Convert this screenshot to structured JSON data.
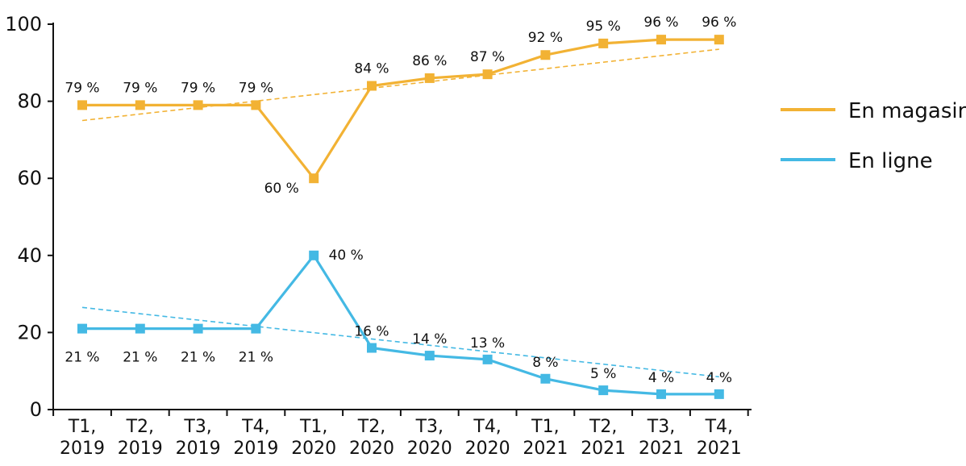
{
  "chart_data": {
    "type": "line",
    "title": "",
    "xlabel": "",
    "ylabel": "",
    "ylim": [
      0,
      100
    ],
    "yticks": [
      0,
      20,
      40,
      60,
      80,
      100
    ],
    "grid": false,
    "legend_position": "right",
    "categories": [
      [
        "T1,",
        "2019"
      ],
      [
        "T2,",
        "2019"
      ],
      [
        "T3,",
        "2019"
      ],
      [
        "T4,",
        "2019"
      ],
      [
        "T1,",
        "2020"
      ],
      [
        "T2,",
        "2020"
      ],
      [
        "T3,",
        "2020"
      ],
      [
        "T4,",
        "2020"
      ],
      [
        "T1,",
        "2021"
      ],
      [
        "T2,",
        "2021"
      ],
      [
        "T3,",
        "2021"
      ],
      [
        "T4,",
        "2021"
      ]
    ],
    "series": [
      {
        "name": "En magasin",
        "color": "#f2b234",
        "values": [
          79,
          79,
          79,
          79,
          60,
          84,
          86,
          87,
          92,
          95,
          96,
          96
        ],
        "labels": [
          "79 %",
          "79 %",
          "79 %",
          "79 %",
          "60 %",
          "84 %",
          "86 %",
          "87 %",
          "92 %",
          "95 %",
          "96 %",
          "96 %"
        ],
        "trend": [
          75,
          93.5
        ]
      },
      {
        "name": "En ligne",
        "color": "#44b9e4",
        "values": [
          21,
          21,
          21,
          21,
          40,
          16,
          14,
          13,
          8,
          5,
          4,
          4
        ],
        "labels": [
          "21 %",
          "21 %",
          "21 %",
          "21 %",
          "40 %",
          "16 %",
          "14 %",
          "13 %",
          "8 %",
          "5 %",
          "4 %",
          "4 %"
        ],
        "trend": [
          26.5,
          8.5
        ]
      }
    ]
  }
}
